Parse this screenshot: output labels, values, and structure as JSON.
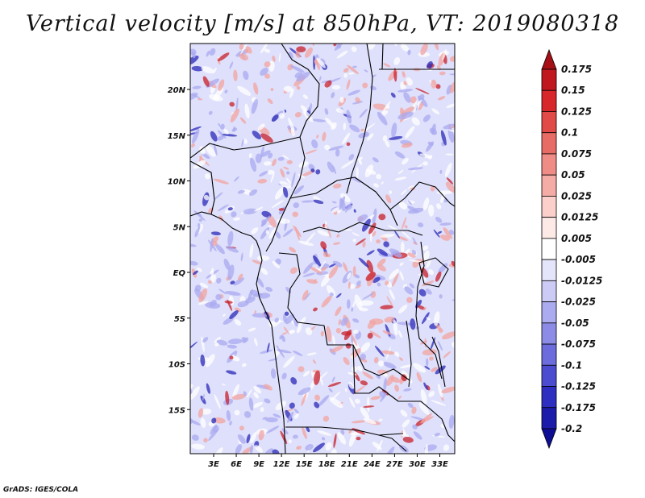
{
  "title": "Vertical velocity [m/s] at 850hPa, VT: 2019080318",
  "credit": "GrADS: IGES/COLA",
  "map": {
    "variable": "Vertical velocity",
    "units": "m/s",
    "level": "850hPa",
    "valid_time": "2019080318",
    "lat_labels": [
      {
        "text": "20N",
        "lat": 20
      },
      {
        "text": "15N",
        "lat": 15
      },
      {
        "text": "10N",
        "lat": 10
      },
      {
        "text": "5N",
        "lat": 5
      },
      {
        "text": "EQ",
        "lat": 0
      },
      {
        "text": "5S",
        "lat": -5
      },
      {
        "text": "10S",
        "lat": -10
      },
      {
        "text": "15S",
        "lat": -15
      }
    ],
    "lon_labels": [
      {
        "text": "3E",
        "lon": 3
      },
      {
        "text": "6E",
        "lon": 6
      },
      {
        "text": "9E",
        "lon": 9
      },
      {
        "text": "12E",
        "lon": 12
      },
      {
        "text": "15E",
        "lon": 15
      },
      {
        "text": "18E",
        "lon": 18
      },
      {
        "text": "21E",
        "lon": 21
      },
      {
        "text": "24E",
        "lon": 24
      },
      {
        "text": "27E",
        "lon": 27
      },
      {
        "text": "30E",
        "lon": 30
      },
      {
        "text": "33E",
        "lon": 33
      }
    ]
  },
  "colorbar": {
    "labels": [
      "0.175",
      "0.15",
      "0.125",
      "0.1",
      "0.075",
      "0.05",
      "0.025",
      "0.0125",
      "0.005",
      "-0.005",
      "-0.0125",
      "-0.025",
      "-0.05",
      "-0.075",
      "-0.1",
      "-0.125",
      "-0.175",
      "-0.2"
    ],
    "colors": [
      "#a50f15",
      "#c0181f",
      "#d7272b",
      "#e04a47",
      "#e86c66",
      "#f08c86",
      "#f5aca6",
      "#fbd0cb",
      "#fde9e6",
      "#ffffff",
      "#e4e4fb",
      "#cbcbf5",
      "#ababf0",
      "#8c8ce6",
      "#6c6cdc",
      "#4c4cd0",
      "#2e2ec0",
      "#1c1caa",
      "#0e0e95"
    ]
  },
  "field_colors": {
    "background": "#dfe0fb",
    "up_strong": "#c8202a",
    "up_weak": "#f2a4a0",
    "down_weak": "#a9aaf0",
    "down_strong": "#2a2ab8",
    "border": "#000000"
  }
}
